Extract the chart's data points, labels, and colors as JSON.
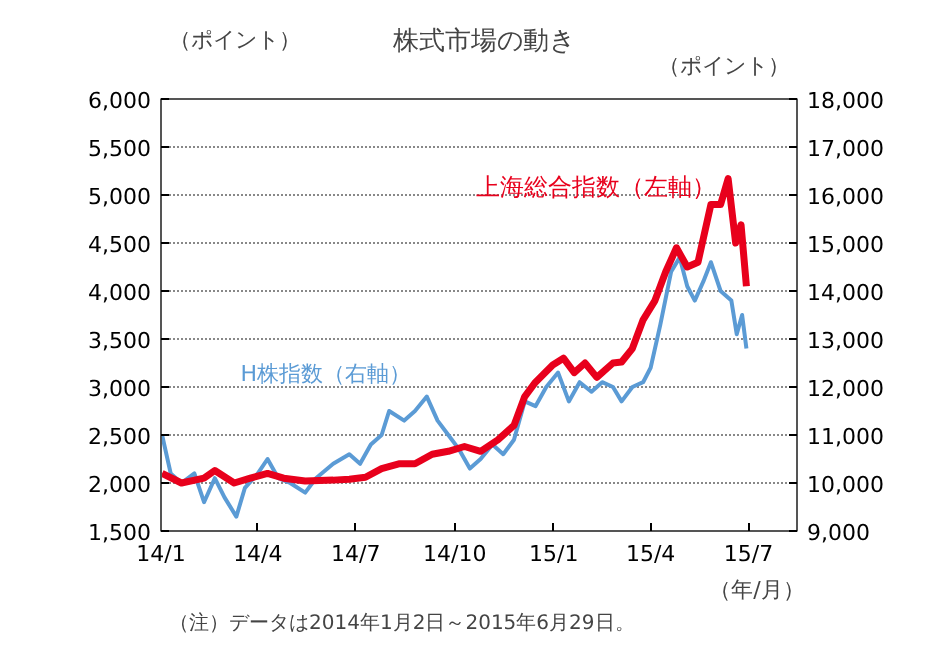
{
  "chart_data": {
    "type": "line",
    "title": "株式市場の動き",
    "xlabel": "（年/月）",
    "ylabel": "（ポイント）",
    "y2label": "（ポイント）",
    "annotations": [
      "（注）データは2014年1月2日～2015年6月29日。"
    ],
    "xlim": [
      "2014-01-01",
      "2015-08-15"
    ],
    "xticks": [
      {
        "value": "2014-01-01",
        "label": "14/1"
      },
      {
        "value": "2014-04-01",
        "label": "14/4"
      },
      {
        "value": "2014-07-01",
        "label": "14/7"
      },
      {
        "value": "2014-10-01",
        "label": "14/10"
      },
      {
        "value": "2015-01-01",
        "label": "15/1"
      },
      {
        "value": "2015-04-01",
        "label": "15/4"
      },
      {
        "value": "2015-07-01",
        "label": "15/7"
      }
    ],
    "ylim": [
      1500,
      6000
    ],
    "yticks": [
      {
        "value": 1500,
        "label": "1,500"
      },
      {
        "value": 2000,
        "label": "2,000"
      },
      {
        "value": 2500,
        "label": "2,500"
      },
      {
        "value": 3000,
        "label": "3,000"
      },
      {
        "value": 3500,
        "label": "3,500"
      },
      {
        "value": 4000,
        "label": "4,000"
      },
      {
        "value": 4500,
        "label": "4,500"
      },
      {
        "value": 5000,
        "label": "5,000"
      },
      {
        "value": 5500,
        "label": "5,500"
      },
      {
        "value": 6000,
        "label": "6,000"
      }
    ],
    "y2lim": [
      9000,
      18000
    ],
    "y2ticks": [
      {
        "value": 9000,
        "label": "9,000"
      },
      {
        "value": 10000,
        "label": "10,000"
      },
      {
        "value": 11000,
        "label": "11,000"
      },
      {
        "value": 12000,
        "label": "12,000"
      },
      {
        "value": 13000,
        "label": "13,000"
      },
      {
        "value": 14000,
        "label": "14,000"
      },
      {
        "value": 15000,
        "label": "15,000"
      },
      {
        "value": 16000,
        "label": "16,000"
      },
      {
        "value": 17000,
        "label": "17,000"
      },
      {
        "value": 18000,
        "label": "18,000"
      }
    ],
    "grid": "y",
    "legend": false,
    "line_style": "solid",
    "series": [
      {
        "name": "H株指数（右軸）",
        "color": "#5b9bd5",
        "axis": "y2",
        "x": [
          "2014-01-02",
          "2014-01-10",
          "2014-01-20",
          "2014-02-01",
          "2014-02-10",
          "2014-02-20",
          "2014-03-01",
          "2014-03-12",
          "2014-03-20",
          "2014-04-01",
          "2014-04-10",
          "2014-04-20",
          "2014-05-01",
          "2014-05-15",
          "2014-05-25",
          "2014-06-10",
          "2014-06-25",
          "2014-07-05",
          "2014-07-15",
          "2014-07-25",
          "2014-08-01",
          "2014-08-15",
          "2014-08-25",
          "2014-09-05",
          "2014-09-15",
          "2014-09-25",
          "2014-10-05",
          "2014-10-15",
          "2014-10-25",
          "2014-11-05",
          "2014-11-15",
          "2014-11-25",
          "2014-12-05",
          "2014-12-15",
          "2014-12-25",
          "2015-01-05",
          "2015-01-15",
          "2015-01-25",
          "2015-02-05",
          "2015-02-15",
          "2015-02-25",
          "2015-03-05",
          "2015-03-15",
          "2015-03-25",
          "2015-04-01",
          "2015-04-10",
          "2015-04-20",
          "2015-04-28",
          "2015-05-05",
          "2015-05-12",
          "2015-05-20",
          "2015-05-27",
          "2015-06-05",
          "2015-06-15",
          "2015-06-20",
          "2015-06-25",
          "2015-06-29"
        ],
        "values": [
          11000,
          10200,
          10000,
          10200,
          9600,
          10100,
          9700,
          9300,
          9900,
          10200,
          10500,
          10100,
          10000,
          9800,
          10100,
          10400,
          10600,
          10400,
          10800,
          11000,
          11500,
          11300,
          11500,
          11800,
          11300,
          11000,
          10700,
          10300,
          10500,
          10800,
          10600,
          10900,
          11700,
          11600,
          12000,
          12300,
          11700,
          12100,
          11900,
          12100,
          12000,
          11700,
          12000,
          12100,
          12400,
          13300,
          14400,
          14700,
          14100,
          13800,
          14200,
          14600,
          14000,
          13800,
          13100,
          13500,
          12800
        ]
      },
      {
        "name": "上海総合指数（左軸）",
        "color": "#e8001c",
        "x": [
          "2014-01-02",
          "2014-01-20",
          "2014-02-10",
          "2014-02-20",
          "2014-03-10",
          "2014-03-25",
          "2014-04-10",
          "2014-04-25",
          "2014-05-15",
          "2014-06-10",
          "2014-06-25",
          "2014-07-10",
          "2014-07-25",
          "2014-08-10",
          "2014-08-25",
          "2014-09-10",
          "2014-09-25",
          "2014-10-10",
          "2014-10-25",
          "2014-11-10",
          "2014-11-25",
          "2014-12-05",
          "2014-12-15",
          "2014-12-31",
          "2015-01-10",
          "2015-01-20",
          "2015-01-30",
          "2015-02-10",
          "2015-02-25",
          "2015-03-05",
          "2015-03-15",
          "2015-03-25",
          "2015-04-05",
          "2015-04-15",
          "2015-04-25",
          "2015-05-05",
          "2015-05-15",
          "2015-05-27",
          "2015-06-05",
          "2015-06-12",
          "2015-06-19",
          "2015-06-24",
          "2015-06-29"
        ],
        "values": [
          2100,
          2000,
          2050,
          2130,
          2000,
          2050,
          2100,
          2050,
          2020,
          2030,
          2040,
          2060,
          2150,
          2200,
          2200,
          2300,
          2330,
          2380,
          2330,
          2450,
          2600,
          2900,
          3050,
          3230,
          3300,
          3150,
          3250,
          3100,
          3250,
          3260,
          3400,
          3700,
          3900,
          4200,
          4450,
          4250,
          4300,
          4900,
          4900,
          5170,
          4500,
          4690,
          4050
        ]
      }
    ]
  }
}
